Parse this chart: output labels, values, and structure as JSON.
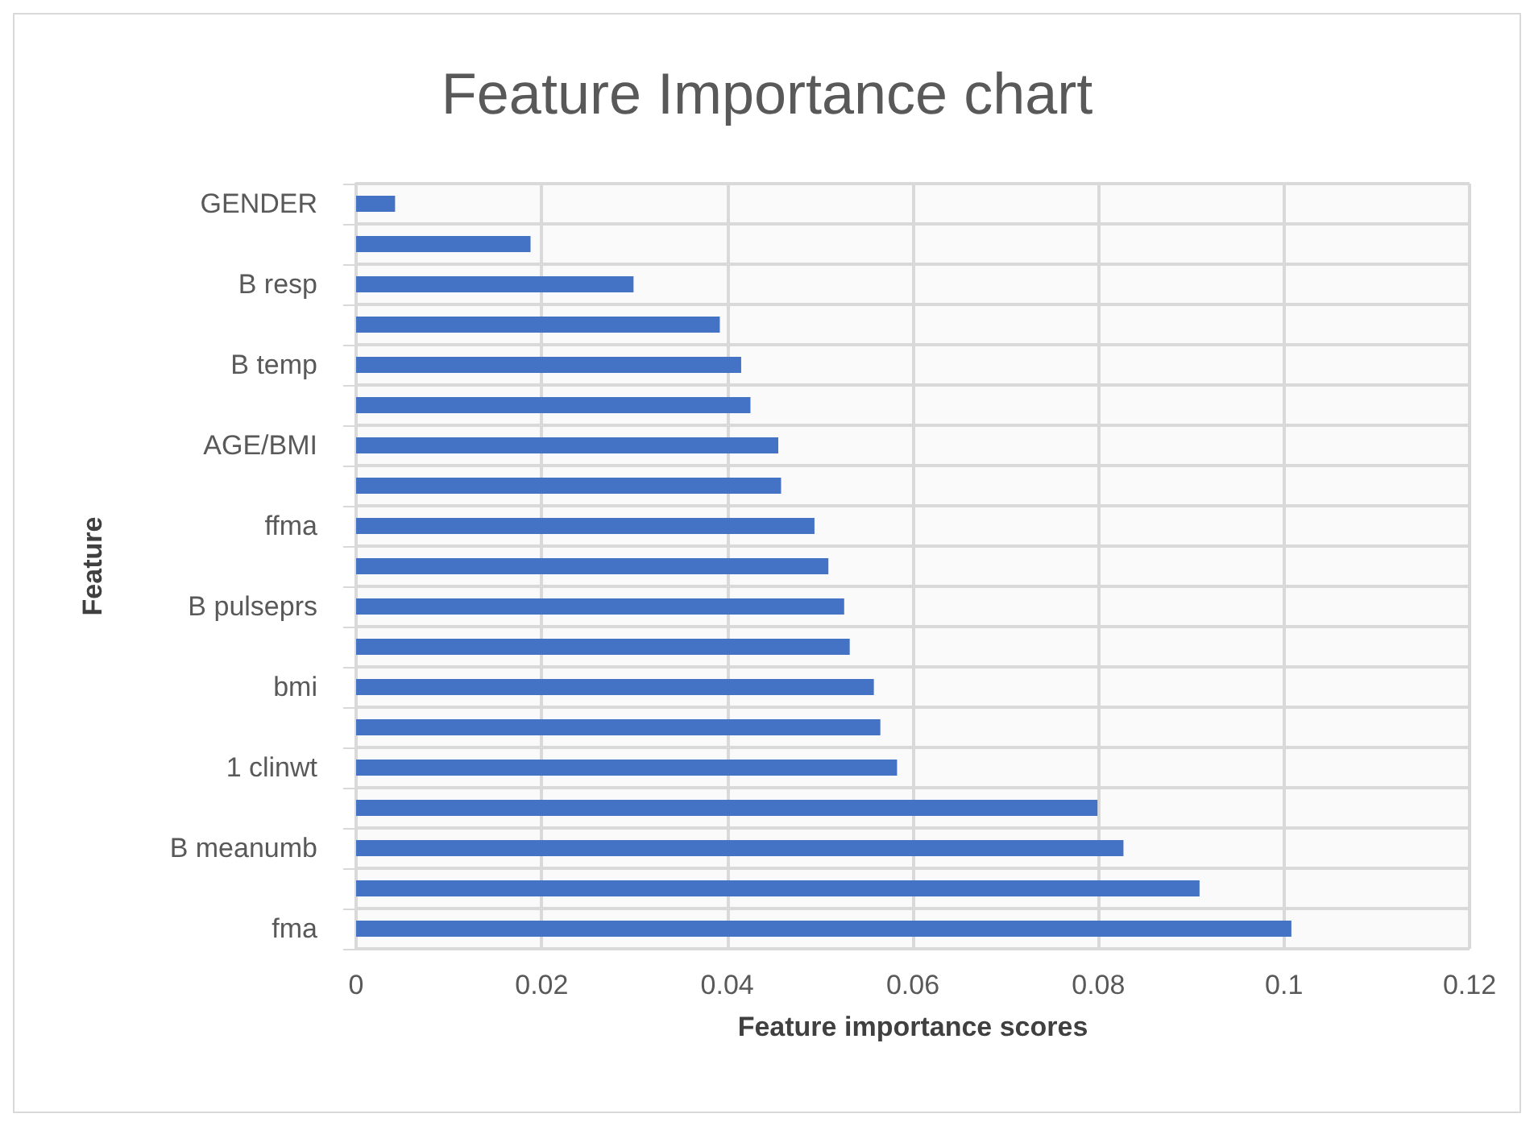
{
  "chart_data": {
    "type": "bar",
    "orientation": "horizontal",
    "title": "Feature Importance chart",
    "xlabel": "Feature importance scores",
    "ylabel": "Feature",
    "categories": [
      "GENDER",
      null,
      "B resp",
      null,
      "B temp",
      null,
      "AGE/BMI",
      null,
      "ffma",
      null,
      "B pulseprs",
      null,
      "bmi",
      null,
      "1 clinwt",
      null,
      "B meanumb",
      null,
      "fma"
    ],
    "values": [
      0.0042,
      0.0188,
      0.0299,
      0.0392,
      0.0415,
      0.0425,
      0.0455,
      0.0458,
      0.0494,
      0.0509,
      0.0526,
      0.0532,
      0.0558,
      0.0565,
      0.0583,
      0.0799,
      0.0827,
      0.0909,
      0.1008
    ],
    "color": "#4472c4",
    "xlim": [
      0,
      0.12
    ],
    "xticks": [
      0,
      0.02,
      0.04,
      0.06,
      0.08,
      0.1,
      0.12
    ],
    "grid": true
  }
}
